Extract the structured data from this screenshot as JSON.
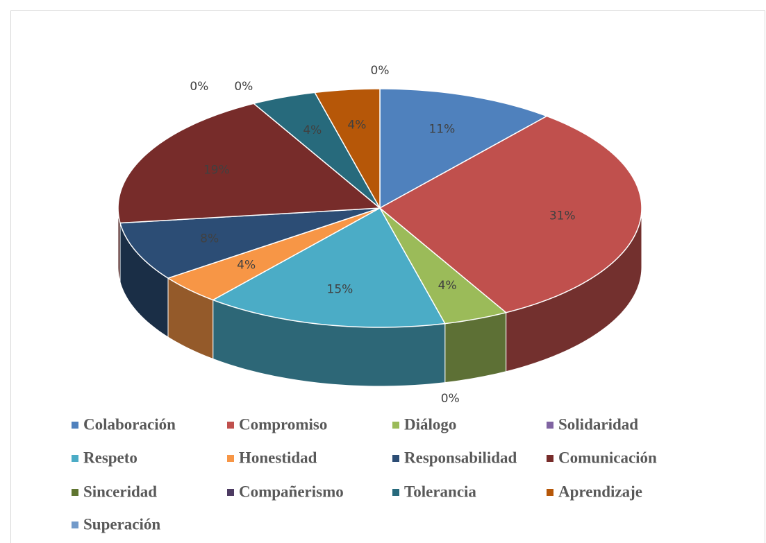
{
  "chart_data": {
    "type": "pie",
    "categories": [
      "Colaboración",
      "Compromiso",
      "Diálogo",
      "Solidaridad",
      "Respeto",
      "Honestidad",
      "Responsabilidad",
      "Comunicación",
      "Sinceridad",
      "Compañerismo",
      "Tolerancia",
      "Aprendizaje",
      "Superación"
    ],
    "values": [
      11,
      31,
      4,
      0,
      15,
      4,
      8,
      19,
      0,
      0,
      4,
      4,
      0
    ],
    "value_labels": [
      "11%",
      "31%",
      "4%",
      "0%",
      "15%",
      "4%",
      "8%",
      "19%",
      "0%",
      "0%",
      "4%",
      "4%",
      "0%"
    ],
    "colors": [
      "#4f81bd",
      "#c0504d",
      "#9bbb59",
      "#8064a2",
      "#4bacc6",
      "#f79646",
      "#2c4d75",
      "#772c2a",
      "#5f7530",
      "#4d3b62",
      "#276a7c",
      "#b65708",
      "#729aca"
    ],
    "legend": "bottom"
  }
}
